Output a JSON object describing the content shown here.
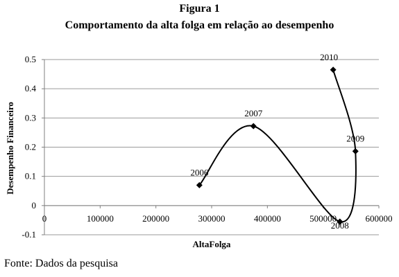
{
  "figure": {
    "label": "Figura 1",
    "title": "Comportamento da alta folga em relação ao desempenho",
    "source": "Fonte: Dados da pesquisa"
  },
  "chart_data": {
    "type": "line",
    "xlabel": "AltaFolga",
    "ylabel": "Desempenho Financeiro",
    "xlim": [
      0,
      600000
    ],
    "ylim": [
      -0.1,
      0.5
    ],
    "x_ticks": [
      0,
      100000,
      200000,
      300000,
      400000,
      500000,
      600000
    ],
    "y_ticks": [
      -0.1,
      0,
      0.1,
      0.2,
      0.3,
      0.4,
      0.5
    ],
    "x_tick_labels": [
      "0",
      "100000",
      "200000",
      "300000",
      "400000",
      "500000",
      "600000"
    ],
    "y_tick_labels": [
      "-0.1",
      "0",
      "0.1",
      "0.2",
      "0.3",
      "0.4",
      "0.5"
    ],
    "grid": "horizontal",
    "smooth": true,
    "line_color": "#000000",
    "points": [
      {
        "label": "2006",
        "x": 278000,
        "y": 0.07
      },
      {
        "label": "2007",
        "x": 375000,
        "y": 0.272
      },
      {
        "label": "2008",
        "x": 530000,
        "y": -0.055
      },
      {
        "label": "2009",
        "x": 558000,
        "y": 0.186
      },
      {
        "label": "2010",
        "x": 518000,
        "y": 0.465
      }
    ]
  }
}
